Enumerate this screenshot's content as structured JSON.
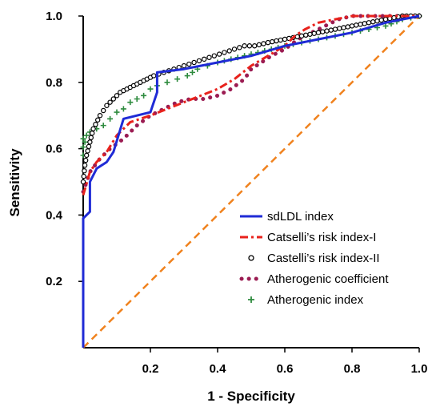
{
  "chart_data": {
    "type": "line",
    "title": "",
    "xlabel": "1 - Specificity",
    "ylabel": "Sensitivity",
    "xlim": [
      0,
      1
    ],
    "ylim": [
      0,
      1
    ],
    "x_ticks": [
      "0.2",
      "0.4",
      "0.6",
      "0.8",
      "1.0"
    ],
    "y_ticks": [
      "0.2",
      "0.4",
      "0.6",
      "0.8",
      "1.0"
    ],
    "grid": false,
    "legend_position": "lower-right",
    "reference_line": {
      "style": "dashed",
      "color": "#f0821e",
      "points": [
        [
          0,
          0
        ],
        [
          1,
          1
        ]
      ]
    },
    "series": [
      {
        "name": "sdLDL index",
        "style": "solid",
        "color": "#1f2bd6",
        "points": [
          [
            0,
            0
          ],
          [
            0,
            0.39
          ],
          [
            0.02,
            0.41
          ],
          [
            0.02,
            0.5
          ],
          [
            0.04,
            0.54
          ],
          [
            0.07,
            0.56
          ],
          [
            0.09,
            0.59
          ],
          [
            0.12,
            0.69
          ],
          [
            0.2,
            0.71
          ],
          [
            0.22,
            0.77
          ],
          [
            0.22,
            0.83
          ],
          [
            0.3,
            0.84
          ],
          [
            0.4,
            0.86
          ],
          [
            0.5,
            0.88
          ],
          [
            0.6,
            0.91
          ],
          [
            0.7,
            0.93
          ],
          [
            0.8,
            0.95
          ],
          [
            0.9,
            0.98
          ],
          [
            1.0,
            1.0
          ]
        ]
      },
      {
        "name": "Catselli’s risk index-I",
        "style": "dashdot",
        "color": "#e8221c",
        "points": [
          [
            0,
            0.46
          ],
          [
            0.02,
            0.53
          ],
          [
            0.04,
            0.56
          ],
          [
            0.07,
            0.59
          ],
          [
            0.1,
            0.64
          ],
          [
            0.14,
            0.68
          ],
          [
            0.2,
            0.7
          ],
          [
            0.25,
            0.72
          ],
          [
            0.3,
            0.74
          ],
          [
            0.35,
            0.76
          ],
          [
            0.4,
            0.78
          ],
          [
            0.45,
            0.81
          ],
          [
            0.5,
            0.85
          ],
          [
            0.55,
            0.88
          ],
          [
            0.6,
            0.91
          ],
          [
            0.63,
            0.94
          ],
          [
            0.66,
            0.96
          ],
          [
            0.7,
            0.98
          ],
          [
            0.75,
            0.99
          ],
          [
            0.8,
            1.0
          ],
          [
            1.0,
            1.0
          ]
        ]
      },
      {
        "name": "Castelli’s risk index-II",
        "style": "circles",
        "color": "#000000",
        "points": [
          [
            0,
            0.5
          ],
          [
            0.005,
            0.55
          ],
          [
            0.01,
            0.58
          ],
          [
            0.02,
            0.62
          ],
          [
            0.03,
            0.66
          ],
          [
            0.05,
            0.7
          ],
          [
            0.07,
            0.73
          ],
          [
            0.09,
            0.75
          ],
          [
            0.11,
            0.77
          ],
          [
            0.13,
            0.78
          ],
          [
            0.15,
            0.79
          ],
          [
            0.17,
            0.8
          ],
          [
            0.19,
            0.81
          ],
          [
            0.21,
            0.82
          ],
          [
            0.24,
            0.83
          ],
          [
            0.27,
            0.84
          ],
          [
            0.3,
            0.85
          ],
          [
            0.33,
            0.86
          ],
          [
            0.36,
            0.87
          ],
          [
            0.39,
            0.88
          ],
          [
            0.42,
            0.89
          ],
          [
            0.45,
            0.9
          ],
          [
            0.48,
            0.91
          ],
          [
            0.51,
            0.91
          ],
          [
            0.55,
            0.92
          ],
          [
            0.6,
            0.93
          ],
          [
            0.65,
            0.94
          ],
          [
            0.7,
            0.95
          ],
          [
            0.75,
            0.96
          ],
          [
            0.8,
            0.97
          ],
          [
            0.85,
            0.98
          ],
          [
            0.9,
            0.99
          ],
          [
            0.95,
            1.0
          ],
          [
            1.0,
            1.0
          ]
        ]
      },
      {
        "name": "Atherogenic coefficient",
        "style": "dotted",
        "color": "#9b1c52",
        "points": [
          [
            0,
            0.47
          ],
          [
            0.02,
            0.53
          ],
          [
            0.05,
            0.57
          ],
          [
            0.08,
            0.6
          ],
          [
            0.12,
            0.63
          ],
          [
            0.16,
            0.67
          ],
          [
            0.2,
            0.7
          ],
          [
            0.24,
            0.72
          ],
          [
            0.28,
            0.74
          ],
          [
            0.32,
            0.75
          ],
          [
            0.36,
            0.75
          ],
          [
            0.4,
            0.76
          ],
          [
            0.44,
            0.78
          ],
          [
            0.48,
            0.81
          ],
          [
            0.5,
            0.84
          ],
          [
            0.53,
            0.86
          ],
          [
            0.56,
            0.88
          ],
          [
            0.6,
            0.9
          ],
          [
            0.64,
            0.93
          ],
          [
            0.68,
            0.95
          ],
          [
            0.72,
            0.97
          ],
          [
            0.76,
            0.99
          ],
          [
            0.8,
            1.0
          ],
          [
            1.0,
            1.0
          ]
        ]
      },
      {
        "name": "Atherogenic index",
        "style": "plus",
        "color": "#2e8b3e",
        "points": [
          [
            0,
            0.58
          ],
          [
            0,
            0.63
          ],
          [
            0.005,
            0.62
          ],
          [
            0.01,
            0.64
          ],
          [
            0.02,
            0.65
          ],
          [
            0.04,
            0.66
          ],
          [
            0.06,
            0.67
          ],
          [
            0.08,
            0.69
          ],
          [
            0.1,
            0.71
          ],
          [
            0.12,
            0.72
          ],
          [
            0.14,
            0.74
          ],
          [
            0.16,
            0.75
          ],
          [
            0.18,
            0.76
          ],
          [
            0.2,
            0.78
          ],
          [
            0.22,
            0.79
          ],
          [
            0.25,
            0.8
          ],
          [
            0.28,
            0.81
          ],
          [
            0.31,
            0.82
          ],
          [
            0.34,
            0.84
          ],
          [
            0.37,
            0.85
          ],
          [
            0.4,
            0.86
          ],
          [
            0.44,
            0.87
          ],
          [
            0.48,
            0.88
          ],
          [
            0.52,
            0.89
          ],
          [
            0.56,
            0.9
          ],
          [
            0.6,
            0.91
          ],
          [
            0.65,
            0.92
          ],
          [
            0.7,
            0.93
          ],
          [
            0.75,
            0.94
          ],
          [
            0.8,
            0.95
          ],
          [
            0.85,
            0.96
          ],
          [
            0.9,
            0.97
          ],
          [
            0.95,
            0.99
          ],
          [
            1.0,
            1.0
          ]
        ]
      }
    ]
  }
}
